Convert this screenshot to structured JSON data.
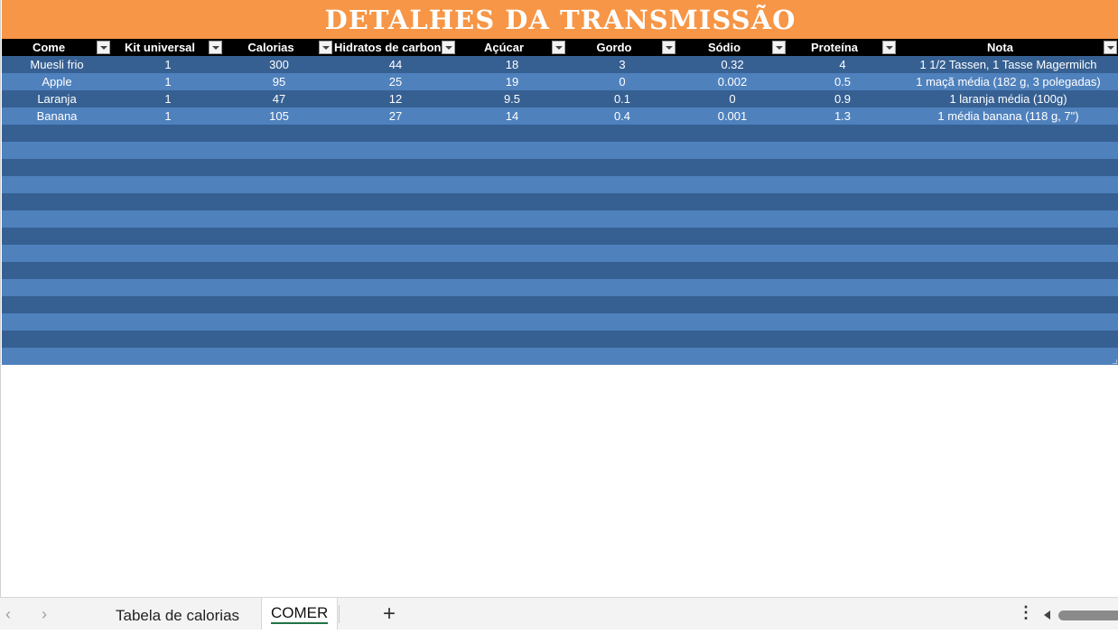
{
  "title": "DETALHES DA TRANSMISSÃO",
  "columns": [
    {
      "label": "Come"
    },
    {
      "label": "Kit universal"
    },
    {
      "label": "Calorias"
    },
    {
      "label": "Hidratos de carbono"
    },
    {
      "label": "Açúcar"
    },
    {
      "label": "Gordo"
    },
    {
      "label": "Sódio"
    },
    {
      "label": "Proteína"
    },
    {
      "label": "Nota"
    }
  ],
  "rows": [
    [
      "Muesli frio",
      "1",
      "300",
      "44",
      "18",
      "3",
      "0.32",
      "4",
      "1 1/2 Tassen, 1 Tasse Magermilch"
    ],
    [
      "Apple",
      "1",
      "95",
      "25",
      "19",
      "0",
      "0.002",
      "0.5",
      "1 maçã média (182 g, 3 polegadas)"
    ],
    [
      "Laranja",
      "1",
      "47",
      "12",
      "9.5",
      "0.1",
      "0",
      "0.9",
      "1 laranja média (100g)"
    ],
    [
      "Banana",
      "1",
      "105",
      "27",
      "14",
      "0.4",
      "0.001",
      "1.3",
      "1 média banana (118 g, 7\")"
    ]
  ],
  "empty_row_count": 14,
  "sheet_tabs": [
    {
      "label": "Tabela de calorias",
      "active": false
    },
    {
      "label": "COMER",
      "active": true
    }
  ],
  "icons": {
    "prev_sheet": "chevron-left-icon",
    "next_sheet": "chevron-right-icon",
    "add_sheet": "plus-icon",
    "more": "more-options-icon",
    "filter": "filter-dropdown-icon"
  },
  "colors": {
    "title_bg": "#F79646",
    "header_bg": "#000000",
    "row_dark": "#366092",
    "row_light": "#4F81BD",
    "active_tab_underline": "#217346"
  }
}
